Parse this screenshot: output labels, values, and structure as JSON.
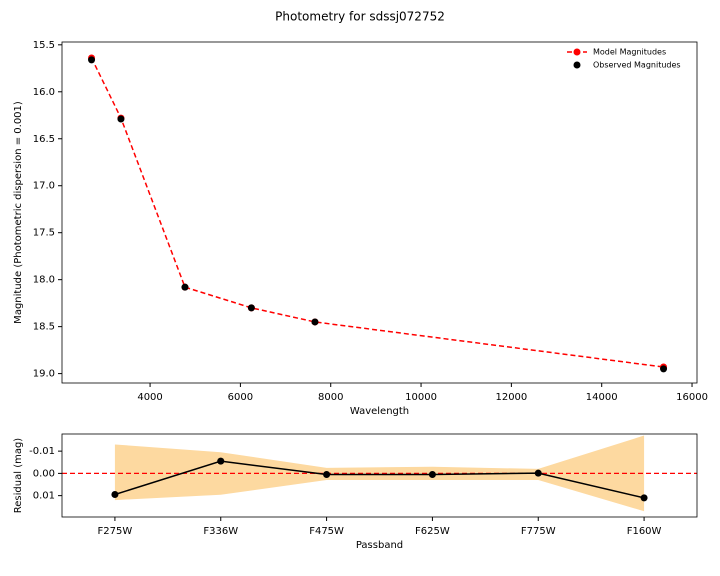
{
  "chart_data": [
    {
      "type": "line",
      "title": "Photometry for sdssj072752",
      "xlabel": "Wavelength",
      "ylabel": "Magnitude (Photometric dispersion = 0.001)",
      "x": [
        2704,
        3355,
        4773,
        6243,
        7651,
        15369
      ],
      "series": [
        {
          "name": "Model Magnitudes",
          "color": "#ff0000",
          "style": "dashed",
          "values": [
            15.64,
            16.28,
            18.08,
            18.3,
            18.45,
            18.93
          ]
        },
        {
          "name": "Observed Magnitudes",
          "color": "#000000",
          "values": [
            15.66,
            16.29,
            18.08,
            18.3,
            18.45,
            18.95
          ]
        }
      ],
      "xlim": [
        2050,
        16110
      ],
      "ylim": [
        15.47,
        19.1
      ],
      "y_inverted": true,
      "xticks": [
        4000,
        6000,
        8000,
        10000,
        12000,
        14000,
        16000
      ],
      "yticks": [
        15.5,
        {
          "value": 16,
          "label": "16.0"
        },
        16.5,
        {
          "value": 17,
          "label": "17.0"
        },
        17.5,
        {
          "value": 18,
          "label": "18.0"
        },
        18.5,
        {
          "value": 19,
          "label": "19.0"
        }
      ],
      "legend": "upper right"
    },
    {
      "type": "residual",
      "xlabel": "Passband",
      "ylabel": "Residual (mag)",
      "categories": [
        "F275W",
        "F336W",
        "F475W",
        "F625W",
        "F775W",
        "F160W"
      ],
      "series": [
        {
          "color": "#000000",
          "values": [
            0.0095,
            -0.0055,
            0.0005,
            0.0005,
            -0.0001,
            0.011
          ],
          "errors": [
            0.0012,
            0.001,
            0.0007,
            0.0007,
            0.0007,
            0.0012
          ]
        }
      ],
      "band_lower": [
        -0.013,
        -0.0095,
        -0.0025,
        -0.003,
        -0.002,
        -0.017
      ],
      "band_upper": [
        0.012,
        0.0096,
        0.003,
        0.003,
        0.003,
        0.017
      ],
      "band_color": "#fdd9a0",
      "reference_line": 0,
      "reference_color": "#ff0000",
      "ylim": [
        -0.0177,
        0.0196
      ],
      "y_inverted": true,
      "yticks": [
        -0.01,
        {
          "value": 0,
          "label": "0.00"
        },
        0.01
      ]
    }
  ]
}
